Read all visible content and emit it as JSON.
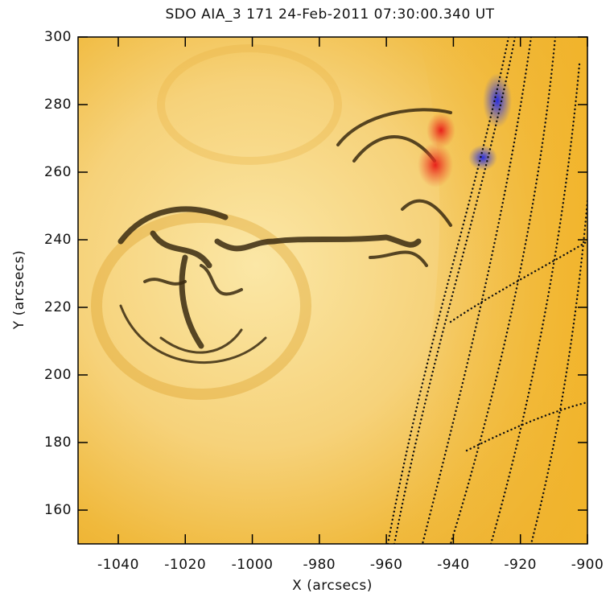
{
  "chart_data": {
    "type": "image",
    "title": "SDO AIA_3 171 24-Feb-2011 07:30:00.340 UT",
    "x_label": "X (arcsecs)",
    "y_label": "Y (arcsecs)",
    "xlim": [
      -1052,
      -900
    ],
    "ylim": [
      150,
      300
    ],
    "xticks": [
      -1040,
      -1020,
      -1000,
      -980,
      -960,
      -940,
      -920,
      -900
    ],
    "yticks": [
      160,
      180,
      200,
      220,
      240,
      260,
      280,
      300
    ]
  }
}
